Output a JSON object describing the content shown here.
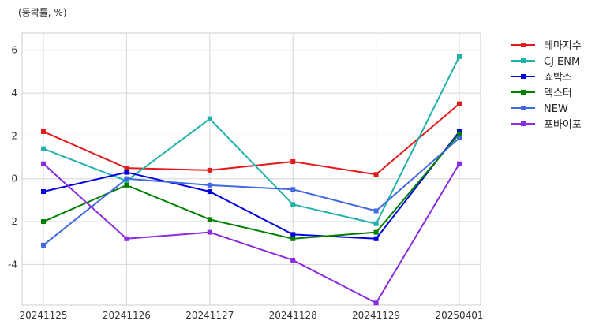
{
  "chart_data": {
    "type": "line",
    "ylabel": "(등락률, %)",
    "categories": [
      "20241125",
      "20241126",
      "20241127",
      "20241128",
      "20241129",
      "20250401"
    ],
    "ylim": [
      -5.9,
      6.8
    ],
    "yticks": [
      -4,
      -2,
      0,
      2,
      4,
      6
    ],
    "grid": true,
    "legend_position": "outside-right",
    "marker": "square",
    "series": [
      {
        "name": "테마지수",
        "color": "#e31a1c",
        "values": [
          2.2,
          0.5,
          0.4,
          0.8,
          0.2,
          3.5
        ]
      },
      {
        "name": "CJ ENM",
        "color": "#20b2aa",
        "values": [
          1.4,
          -0.1,
          2.8,
          -1.2,
          -2.1,
          5.7
        ]
      },
      {
        "name": "쇼박스",
        "color": "#0000e0",
        "values": [
          -0.6,
          0.3,
          -0.6,
          -2.6,
          -2.8,
          2.2
        ]
      },
      {
        "name": "덱스터",
        "color": "#008000",
        "values": [
          -2.0,
          -0.3,
          -1.9,
          -2.8,
          -2.5,
          2.1
        ]
      },
      {
        "name": "NEW",
        "color": "#4169e1",
        "values": [
          -3.1,
          0.0,
          -0.3,
          -0.5,
          -1.5,
          1.9
        ]
      },
      {
        "name": "포바이포",
        "color": "#8a2be2",
        "values": [
          0.7,
          -2.8,
          -2.5,
          -3.8,
          -5.8,
          0.7
        ]
      }
    ]
  }
}
